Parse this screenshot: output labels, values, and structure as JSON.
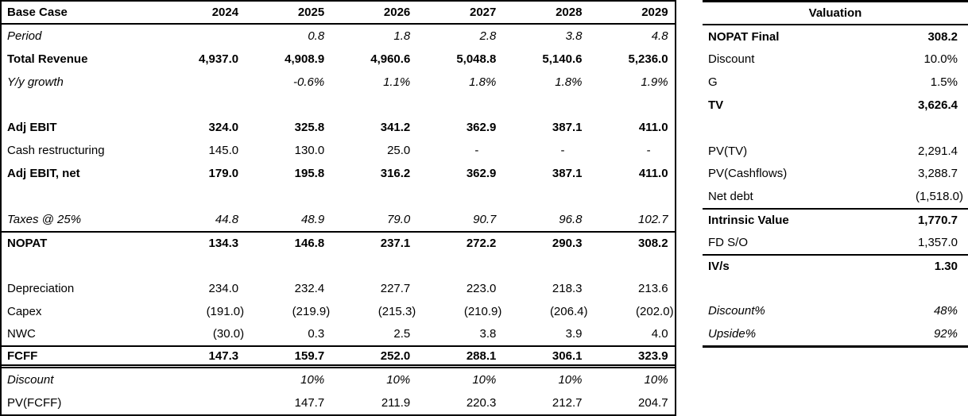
{
  "app": {
    "kind": "spreadsheet-financial-model",
    "colors": {
      "background": "#ffffff",
      "text": "#000000",
      "border": "#000000"
    }
  },
  "base_case_table": {
    "title": "Base Case",
    "years": [
      "2024",
      "2025",
      "2026",
      "2027",
      "2028",
      "2029"
    ],
    "rows": [
      {
        "label": "Period",
        "style": "italic",
        "values": [
          "",
          "0.8",
          "1.8",
          "2.8",
          "3.8",
          "4.8"
        ]
      },
      {
        "label": "Total Revenue",
        "style": "bold",
        "values": [
          "4,937.0",
          "4,908.9",
          "4,960.6",
          "5,048.8",
          "5,140.6",
          "5,236.0"
        ]
      },
      {
        "label": "Y/y growth",
        "style": "italic",
        "values": [
          "",
          "-0.6%",
          "1.1%",
          "1.8%",
          "1.8%",
          "1.9%"
        ]
      },
      {
        "label": "",
        "style": "",
        "values": [
          "",
          "",
          "",
          "",
          "",
          ""
        ]
      },
      {
        "label": "Adj EBIT",
        "style": "bold",
        "values": [
          "324.0",
          "325.8",
          "341.2",
          "362.9",
          "387.1",
          "411.0"
        ]
      },
      {
        "label": "Cash restructuring",
        "style": "",
        "values": [
          "145.0",
          "130.0",
          "25.0",
          "-",
          "-",
          "-"
        ]
      },
      {
        "label": "Adj EBIT, net",
        "style": "bold",
        "values": [
          "179.0",
          "195.8",
          "316.2",
          "362.9",
          "387.1",
          "411.0"
        ]
      },
      {
        "label": "",
        "style": "",
        "values": [
          "",
          "",
          "",
          "",
          "",
          ""
        ]
      },
      {
        "label": "Taxes @ 25%",
        "style": "italic",
        "values": [
          "44.8",
          "48.9",
          "79.0",
          "90.7",
          "96.8",
          "102.7"
        ]
      },
      {
        "label": "NOPAT",
        "style": "bold",
        "border_top": true,
        "values": [
          "134.3",
          "146.8",
          "237.1",
          "272.2",
          "290.3",
          "308.2"
        ]
      },
      {
        "label": "",
        "style": "",
        "values": [
          "",
          "",
          "",
          "",
          "",
          ""
        ]
      },
      {
        "label": "Depreciation",
        "style": "",
        "values": [
          "234.0",
          "232.4",
          "227.7",
          "223.0",
          "218.3",
          "213.6"
        ]
      },
      {
        "label": "Capex",
        "style": "",
        "values": [
          "(191.0)",
          "(219.9)",
          "(215.3)",
          "(210.9)",
          "(206.4)",
          "(202.0)"
        ]
      },
      {
        "label": "NWC",
        "style": "",
        "values": [
          "(30.0)",
          "0.3",
          "2.5",
          "3.8",
          "3.9",
          "4.0"
        ]
      },
      {
        "label": "FCFF",
        "style": "bold",
        "border_top": true,
        "border_bottom": "double",
        "values": [
          "147.3",
          "159.7",
          "252.0",
          "288.1",
          "306.1",
          "323.9"
        ]
      },
      {
        "label": "Discount",
        "style": "italic",
        "values": [
          "",
          "10%",
          "10%",
          "10%",
          "10%",
          "10%"
        ]
      },
      {
        "label": "PV(FCFF)",
        "style": "",
        "values": [
          "",
          "147.7",
          "211.9",
          "220.3",
          "212.7",
          "204.7"
        ]
      }
    ]
  },
  "valuation_table": {
    "title": "Valuation",
    "rows": [
      {
        "label": "NOPAT Final",
        "style": "bold",
        "value": "308.2"
      },
      {
        "label": "Discount",
        "style": "",
        "value": "10.0%"
      },
      {
        "label": "G",
        "style": "",
        "value": "1.5%"
      },
      {
        "label": "TV",
        "style": "bold",
        "value": "3,626.4"
      },
      {
        "label": "",
        "style": "",
        "value": ""
      },
      {
        "label": "PV(TV)",
        "style": "",
        "value": "2,291.4"
      },
      {
        "label": "PV(Cashflows)",
        "style": "",
        "value": "3,288.7"
      },
      {
        "label": "Net debt",
        "style": "",
        "value": "(1,518.0)"
      },
      {
        "label": "Intrinsic Value",
        "style": "bold",
        "border_top": true,
        "value": "1,770.7"
      },
      {
        "label": "FD S/O",
        "style": "",
        "value": "1,357.0"
      },
      {
        "label": "IV/s",
        "style": "bold",
        "border_top": true,
        "value": "1.30"
      },
      {
        "label": "",
        "style": "",
        "value": ""
      },
      {
        "label": "Discount%",
        "style": "italic",
        "value": "48%"
      },
      {
        "label": "Upside%",
        "style": "italic",
        "value": "92%"
      }
    ]
  }
}
